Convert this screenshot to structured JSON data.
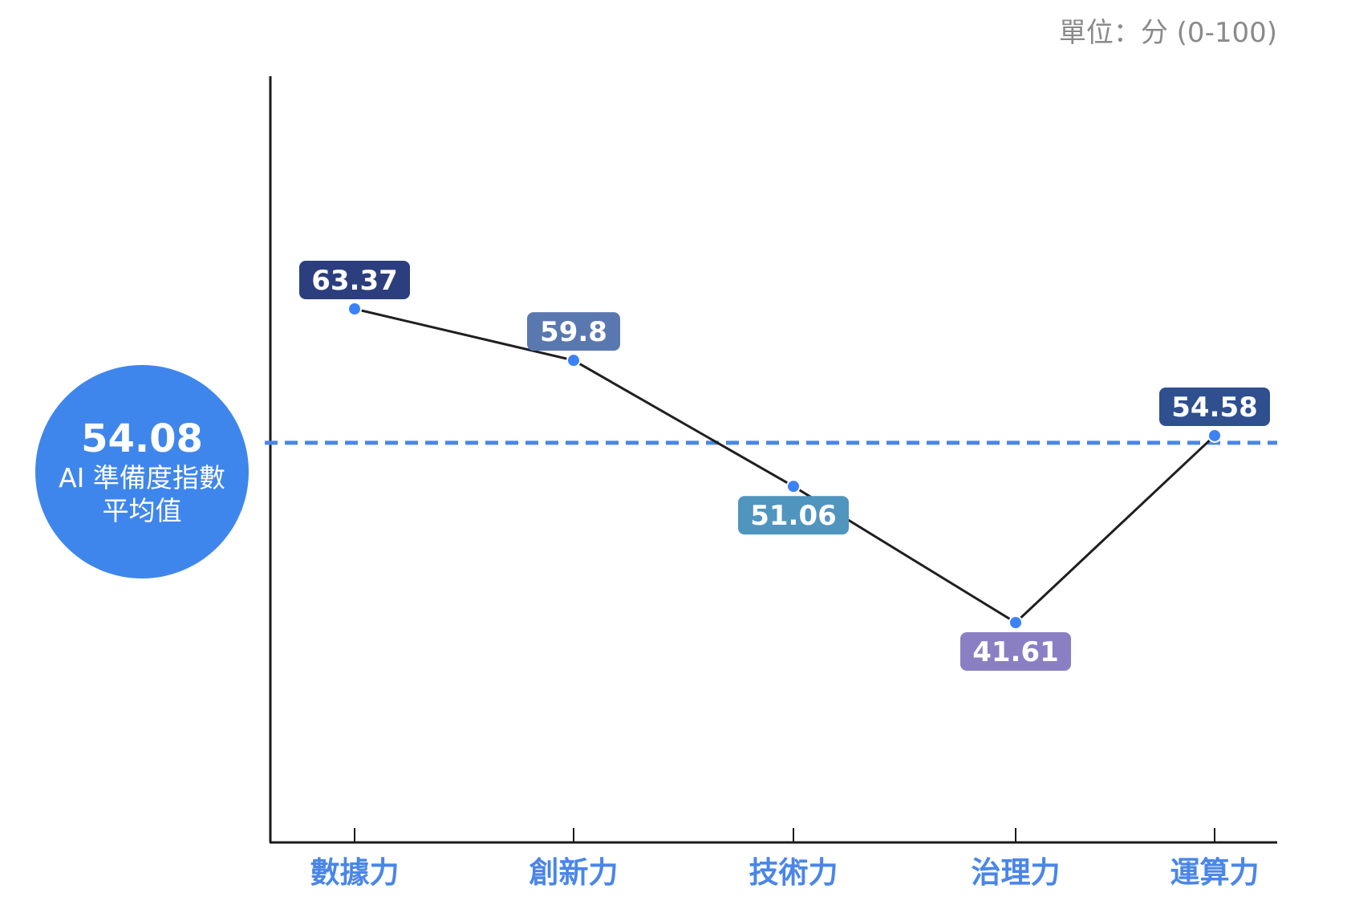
{
  "chart_data": {
    "type": "line",
    "unit_label": "單位：分 (0-100)",
    "categories": [
      "數據力",
      "創新力",
      "技術力",
      "治理力",
      "運算力"
    ],
    "values": [
      63.37,
      59.8,
      51.06,
      41.61,
      54.58
    ],
    "value_labels": [
      "63.37",
      "59.8",
      "51.06",
      "41.61",
      "54.58"
    ],
    "label_colors": [
      "#2c3e7e",
      "#5a78b0",
      "#4f95be",
      "#8a7fc2",
      "#2f4f8f"
    ],
    "label_positions": [
      "above",
      "above",
      "below",
      "below",
      "above"
    ],
    "reference_line": {
      "value": 54.08,
      "value_label": "54.08",
      "caption_line1": "AI 準備度指數",
      "caption_line2": "平均值",
      "style": "dashed",
      "color": "#4a86e8"
    },
    "ylim": [
      20,
      80
    ],
    "grid": false
  }
}
